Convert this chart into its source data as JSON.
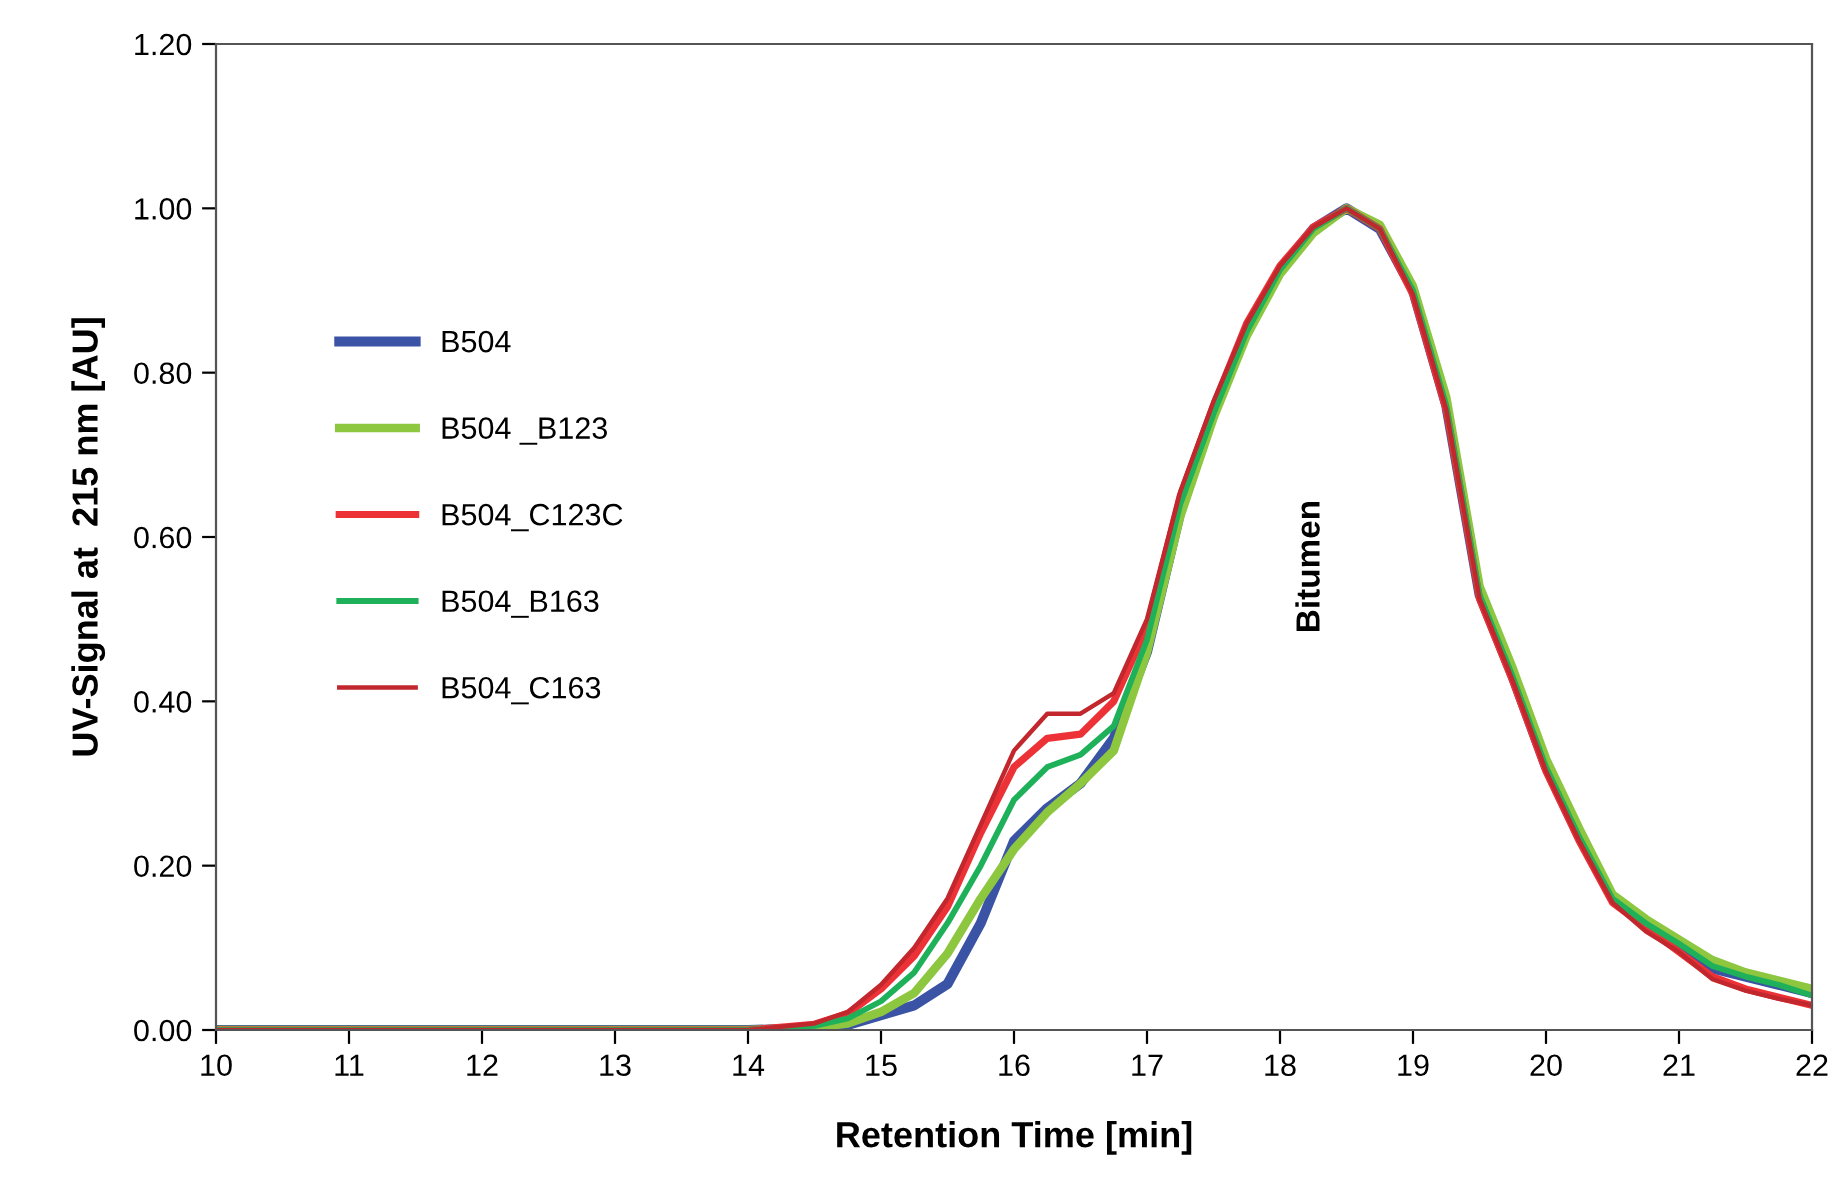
{
  "chart_data": {
    "type": "line",
    "xlabel": "Retention Time [min]",
    "ylabel": "UV-Signal at  215 nm [AU]",
    "x": [
      10,
      14,
      14.5,
      14.75,
      15,
      15.25,
      15.5,
      15.75,
      16,
      16.25,
      16.5,
      16.75,
      17,
      17.25,
      17.5,
      17.75,
      18,
      18.25,
      18.5,
      18.75,
      19,
      19.25,
      19.5,
      19.75,
      20,
      20.25,
      20.5,
      20.75,
      21,
      21.25,
      21.5,
      21.75,
      22
    ],
    "series": [
      {
        "name": "B504",
        "color": "#3a53a4",
        "values": [
          0,
          0,
          0.002,
          0.006,
          0.018,
          0.03,
          0.056,
          0.13,
          0.23,
          0.27,
          0.3,
          0.355,
          0.46,
          0.63,
          0.75,
          0.85,
          0.925,
          0.975,
          1.0,
          0.975,
          0.9,
          0.76,
          0.53,
          0.43,
          0.32,
          0.235,
          0.16,
          0.13,
          0.105,
          0.075,
          0.065,
          0.055,
          0.045
        ]
      },
      {
        "name": "B504 _B123",
        "color": "#8dc63f",
        "values": [
          0,
          0,
          0.003,
          0.008,
          0.022,
          0.045,
          0.093,
          0.16,
          0.22,
          0.265,
          0.3,
          0.34,
          0.46,
          0.625,
          0.745,
          0.845,
          0.92,
          0.97,
          1.0,
          0.98,
          0.905,
          0.77,
          0.54,
          0.44,
          0.33,
          0.245,
          0.165,
          0.135,
          0.11,
          0.085,
          0.07,
          0.06,
          0.05
        ]
      },
      {
        "name": "B504_C123C",
        "color": "#ed3237",
        "values": [
          0,
          0,
          0.007,
          0.02,
          0.05,
          0.09,
          0.15,
          0.24,
          0.32,
          0.355,
          0.36,
          0.4,
          0.49,
          0.65,
          0.76,
          0.86,
          0.93,
          0.977,
          1.0,
          0.975,
          0.895,
          0.755,
          0.525,
          0.425,
          0.315,
          0.23,
          0.155,
          0.125,
          0.095,
          0.065,
          0.05,
          0.04,
          0.03
        ]
      },
      {
        "name": "B504_B163",
        "color": "#1fb05a",
        "values": [
          0,
          0,
          0.005,
          0.014,
          0.035,
          0.07,
          0.13,
          0.2,
          0.28,
          0.32,
          0.335,
          0.37,
          0.475,
          0.64,
          0.75,
          0.85,
          0.925,
          0.975,
          1.0,
          0.975,
          0.9,
          0.76,
          0.53,
          0.43,
          0.32,
          0.235,
          0.16,
          0.13,
          0.105,
          0.078,
          0.065,
          0.055,
          0.042
        ]
      },
      {
        "name": "B504_C163",
        "color": "#c1272d",
        "values": [
          0,
          0,
          0.008,
          0.022,
          0.055,
          0.1,
          0.16,
          0.25,
          0.34,
          0.385,
          0.385,
          0.41,
          0.5,
          0.655,
          0.765,
          0.86,
          0.93,
          0.977,
          1.0,
          0.975,
          0.895,
          0.755,
          0.525,
          0.425,
          0.315,
          0.23,
          0.155,
          0.12,
          0.095,
          0.062,
          0.048,
          0.038,
          0.03
        ]
      }
    ],
    "xlim": [
      10,
      22
    ],
    "xticks": [
      10,
      11,
      12,
      13,
      14,
      15,
      16,
      17,
      18,
      19,
      20,
      21,
      22
    ],
    "ylim": [
      0,
      1.2
    ],
    "yticks": [
      {
        "value": 0,
        "label": "0.00"
      },
      {
        "value": 0.2,
        "label": "0.20"
      },
      {
        "value": 0.4,
        "label": "0.40"
      },
      {
        "value": 0.6,
        "label": "0.60"
      },
      {
        "value": 0.8,
        "label": "0.80"
      },
      {
        "value": 1.0,
        "label": "1.00"
      },
      {
        "value": 1.2,
        "label": "1.20"
      }
    ],
    "annotations": [
      "Bitumen"
    ],
    "grid": false,
    "legend": "center left",
    "marker": "none",
    "line_style": "solid"
  }
}
